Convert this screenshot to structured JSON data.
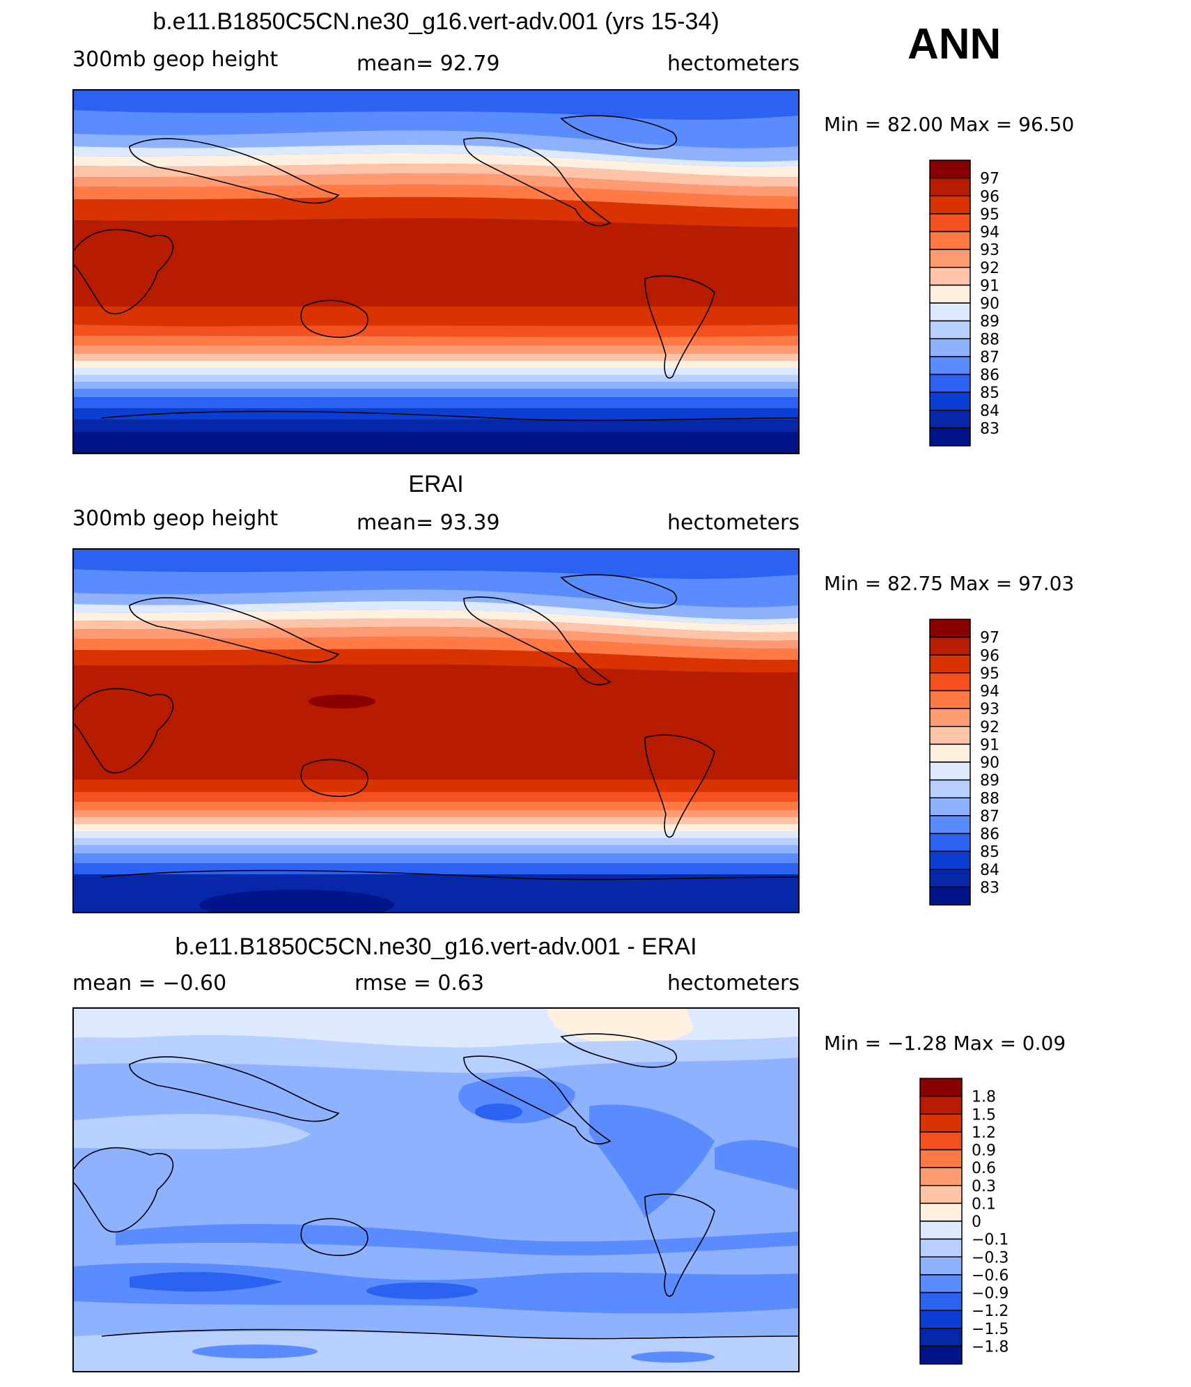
{
  "season": "ANN",
  "panels": [
    {
      "title": "b.e11.B1850C5CN.ne30_g16.vert-adv.001 (yrs 15-34)",
      "left_label": "300mb  geop  height",
      "center_label": "mean=   92.79",
      "units": "hectometers",
      "minmax": "Min  =    82.00  Max  =    96.50",
      "colorbar": {
        "labels": [
          "97",
          "96",
          "95",
          "94",
          "93",
          "92",
          "91",
          "90",
          "89",
          "88",
          "87",
          "86",
          "85",
          "84",
          "83"
        ],
        "colors": [
          "#8a0000",
          "#b71c00",
          "#d93300",
          "#f4511e",
          "#ff7a45",
          "#ff9b73",
          "#ffc4a8",
          "#fff0e0",
          "#dde9ff",
          "#b8d0ff",
          "#8fb2ff",
          "#5b8cff",
          "#2c62f2",
          "#0b3fd4",
          "#0628a8",
          "#00158a"
        ]
      }
    },
    {
      "title": "ERAI",
      "left_label": "300mb  geop  height",
      "center_label": "mean=   93.39",
      "units": "hectometers",
      "minmax": "Min  =    82.75  Max  =    97.03",
      "colorbar": {
        "labels": [
          "97",
          "96",
          "95",
          "94",
          "93",
          "92",
          "91",
          "90",
          "89",
          "88",
          "87",
          "86",
          "85",
          "84",
          "83"
        ],
        "colors": [
          "#8a0000",
          "#b71c00",
          "#d93300",
          "#f4511e",
          "#ff7a45",
          "#ff9b73",
          "#ffc4a8",
          "#fff0e0",
          "#dde9ff",
          "#b8d0ff",
          "#8fb2ff",
          "#5b8cff",
          "#2c62f2",
          "#0b3fd4",
          "#0628a8",
          "#00158a"
        ]
      }
    },
    {
      "title": "b.e11.B1850C5CN.ne30_g16.vert-adv.001 - ERAI",
      "left_label": "mean  =    −0.60",
      "center_label": "rmse  =     0.63",
      "units": "hectometers",
      "minmax": "Min  =   −1.28  Max  =     0.09",
      "colorbar": {
        "labels": [
          "1.8",
          "1.5",
          "1.2",
          "0.9",
          "0.6",
          "0.3",
          "0.1",
          "0",
          "−0.1",
          "−0.3",
          "−0.6",
          "−0.9",
          "−1.2",
          "−1.5",
          "−1.8"
        ],
        "colors": [
          "#8a0000",
          "#b71c00",
          "#d93300",
          "#f4511e",
          "#ff7a45",
          "#ff9b73",
          "#ffc4a8",
          "#fff0e0",
          "#dde9ff",
          "#b8d0ff",
          "#8fb2ff",
          "#5b8cff",
          "#2c62f2",
          "#0b3fd4",
          "#0628a8",
          "#00158a"
        ]
      }
    }
  ]
}
